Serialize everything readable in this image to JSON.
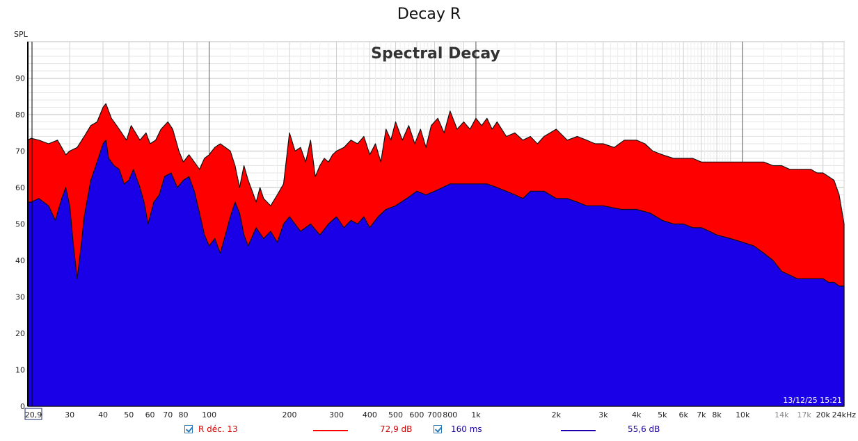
{
  "window": {
    "title": "Decay R"
  },
  "chart_data": {
    "type": "area",
    "title": "Spectral Decay",
    "ylabel": "SPL",
    "xlabel": "",
    "x_scale": "log",
    "xlim": [
      20.9,
      24000
    ],
    "ylim": [
      0,
      100
    ],
    "grid": true,
    "y_ticks": [
      "0",
      "10",
      "20",
      "30",
      "40",
      "50",
      "60",
      "70",
      "80",
      "90"
    ],
    "x_ticks": [
      {
        "value": 20.9,
        "label": "20,9"
      },
      {
        "value": 30,
        "label": "30"
      },
      {
        "value": 40,
        "label": "40"
      },
      {
        "value": 50,
        "label": "50"
      },
      {
        "value": 60,
        "label": "60"
      },
      {
        "value": 70,
        "label": "70"
      },
      {
        "value": 80,
        "label": "80"
      },
      {
        "value": 100,
        "label": "100"
      },
      {
        "value": 200,
        "label": "200"
      },
      {
        "value": 300,
        "label": "300"
      },
      {
        "value": 400,
        "label": "400"
      },
      {
        "value": 500,
        "label": "500"
      },
      {
        "value": 600,
        "label": "600"
      },
      {
        "value": 700,
        "label": "700"
      },
      {
        "value": 800,
        "label": "800"
      },
      {
        "value": 1000,
        "label": "1k"
      },
      {
        "value": 2000,
        "label": "2k"
      },
      {
        "value": 3000,
        "label": "3k"
      },
      {
        "value": 4000,
        "label": "4k"
      },
      {
        "value": 5000,
        "label": "5k"
      },
      {
        "value": 6000,
        "label": "6k"
      },
      {
        "value": 7000,
        "label": "7k"
      },
      {
        "value": 8000,
        "label": "8k"
      },
      {
        "value": 10000,
        "label": "10k"
      },
      {
        "value": 14000,
        "label": "14k",
        "light": true
      },
      {
        "value": 17000,
        "label": "17k",
        "light": true
      },
      {
        "value": 20000,
        "label": "20k"
      },
      {
        "value": 24000,
        "label": "24kHz"
      }
    ],
    "series": [
      {
        "name": "R déc. 13",
        "color": "#ff0000",
        "readout": "72,9 dB",
        "points": [
          [
            20.9,
            73
          ],
          [
            21.5,
            73.5
          ],
          [
            23,
            73
          ],
          [
            25,
            72
          ],
          [
            27,
            73
          ],
          [
            28,
            71
          ],
          [
            29,
            69
          ],
          [
            30,
            70
          ],
          [
            32,
            71
          ],
          [
            34,
            74
          ],
          [
            36,
            77
          ],
          [
            38,
            78
          ],
          [
            40,
            82
          ],
          [
            41,
            83
          ],
          [
            43,
            79
          ],
          [
            45,
            77
          ],
          [
            47,
            75
          ],
          [
            49,
            73
          ],
          [
            51,
            77
          ],
          [
            53,
            75
          ],
          [
            55,
            73
          ],
          [
            58,
            75
          ],
          [
            60,
            72
          ],
          [
            63,
            73
          ],
          [
            66,
            76
          ],
          [
            70,
            78
          ],
          [
            73,
            76
          ],
          [
            77,
            70
          ],
          [
            80,
            67
          ],
          [
            84,
            69
          ],
          [
            88,
            67
          ],
          [
            92,
            65
          ],
          [
            96,
            68
          ],
          [
            100,
            69
          ],
          [
            105,
            71
          ],
          [
            110,
            72
          ],
          [
            115,
            71
          ],
          [
            120,
            70
          ],
          [
            125,
            66
          ],
          [
            130,
            60
          ],
          [
            135,
            66
          ],
          [
            140,
            62
          ],
          [
            145,
            59
          ],
          [
            150,
            56
          ],
          [
            155,
            60
          ],
          [
            160,
            57
          ],
          [
            170,
            55
          ],
          [
            180,
            58
          ],
          [
            190,
            61
          ],
          [
            200,
            75
          ],
          [
            210,
            70
          ],
          [
            220,
            71
          ],
          [
            230,
            67
          ],
          [
            240,
            73
          ],
          [
            250,
            63
          ],
          [
            260,
            66
          ],
          [
            270,
            68
          ],
          [
            280,
            67
          ],
          [
            290,
            69
          ],
          [
            300,
            70
          ],
          [
            320,
            71
          ],
          [
            340,
            73
          ],
          [
            360,
            72
          ],
          [
            380,
            74
          ],
          [
            400,
            69
          ],
          [
            420,
            72
          ],
          [
            440,
            67
          ],
          [
            460,
            76
          ],
          [
            480,
            73
          ],
          [
            500,
            78
          ],
          [
            530,
            73
          ],
          [
            560,
            77
          ],
          [
            590,
            72
          ],
          [
            620,
            76
          ],
          [
            650,
            71
          ],
          [
            680,
            77
          ],
          [
            720,
            79
          ],
          [
            760,
            75
          ],
          [
            800,
            81
          ],
          [
            850,
            76
          ],
          [
            900,
            78
          ],
          [
            950,
            76
          ],
          [
            1000,
            79
          ],
          [
            1050,
            77
          ],
          [
            1100,
            79
          ],
          [
            1150,
            76
          ],
          [
            1200,
            78
          ],
          [
            1300,
            74
          ],
          [
            1400,
            75
          ],
          [
            1500,
            73
          ],
          [
            1600,
            74
          ],
          [
            1700,
            72
          ],
          [
            1800,
            74
          ],
          [
            2000,
            76
          ],
          [
            2200,
            73
          ],
          [
            2400,
            74
          ],
          [
            2600,
            73
          ],
          [
            2800,
            72
          ],
          [
            3000,
            72
          ],
          [
            3300,
            71
          ],
          [
            3600,
            73
          ],
          [
            4000,
            73
          ],
          [
            4300,
            72
          ],
          [
            4600,
            70
          ],
          [
            5000,
            69
          ],
          [
            5500,
            68
          ],
          [
            6000,
            68
          ],
          [
            6500,
            68
          ],
          [
            7000,
            67
          ],
          [
            7500,
            67
          ],
          [
            8000,
            67
          ],
          [
            9000,
            67
          ],
          [
            10000,
            67
          ],
          [
            11000,
            67
          ],
          [
            12000,
            67
          ],
          [
            13000,
            66
          ],
          [
            14000,
            66
          ],
          [
            15000,
            65
          ],
          [
            16000,
            65
          ],
          [
            17000,
            65
          ],
          [
            18000,
            65
          ],
          [
            19000,
            64
          ],
          [
            20000,
            64
          ],
          [
            21000,
            63
          ],
          [
            22000,
            62
          ],
          [
            23000,
            58
          ],
          [
            24000,
            50
          ]
        ]
      },
      {
        "name": "160 ms",
        "color": "#1a00e6",
        "readout": "55,6 dB",
        "points": [
          [
            20.9,
            56
          ],
          [
            21.5,
            56
          ],
          [
            23,
            57
          ],
          [
            25,
            55
          ],
          [
            26.5,
            51
          ],
          [
            28,
            57
          ],
          [
            29,
            60
          ],
          [
            30,
            55
          ],
          [
            31,
            44
          ],
          [
            32,
            35
          ],
          [
            33,
            43
          ],
          [
            34,
            52
          ],
          [
            36,
            62
          ],
          [
            38,
            67
          ],
          [
            40,
            72
          ],
          [
            41,
            73
          ],
          [
            42,
            68
          ],
          [
            44,
            66
          ],
          [
            46,
            65
          ],
          [
            48,
            61
          ],
          [
            50,
            62
          ],
          [
            52,
            65
          ],
          [
            55,
            60
          ],
          [
            57,
            56
          ],
          [
            59,
            50
          ],
          [
            62,
            56
          ],
          [
            65,
            58
          ],
          [
            68,
            63
          ],
          [
            72,
            64
          ],
          [
            76,
            60
          ],
          [
            80,
            62
          ],
          [
            84,
            63
          ],
          [
            88,
            59
          ],
          [
            92,
            53
          ],
          [
            96,
            47
          ],
          [
            100,
            44
          ],
          [
            105,
            46
          ],
          [
            110,
            42
          ],
          [
            115,
            47
          ],
          [
            120,
            52
          ],
          [
            125,
            56
          ],
          [
            130,
            53
          ],
          [
            135,
            47
          ],
          [
            140,
            44
          ],
          [
            150,
            49
          ],
          [
            160,
            46
          ],
          [
            170,
            48
          ],
          [
            180,
            45
          ],
          [
            190,
            50
          ],
          [
            200,
            52
          ],
          [
            220,
            48
          ],
          [
            240,
            50
          ],
          [
            260,
            47
          ],
          [
            280,
            50
          ],
          [
            300,
            52
          ],
          [
            320,
            49
          ],
          [
            340,
            51
          ],
          [
            360,
            50
          ],
          [
            380,
            52
          ],
          [
            400,
            49
          ],
          [
            430,
            52
          ],
          [
            460,
            54
          ],
          [
            500,
            55
          ],
          [
            550,
            57
          ],
          [
            600,
            59
          ],
          [
            650,
            58
          ],
          [
            700,
            59
          ],
          [
            750,
            60
          ],
          [
            800,
            61
          ],
          [
            900,
            61
          ],
          [
            1000,
            61
          ],
          [
            1100,
            61
          ],
          [
            1200,
            60
          ],
          [
            1300,
            59
          ],
          [
            1400,
            58
          ],
          [
            1500,
            57
          ],
          [
            1600,
            59
          ],
          [
            1800,
            59
          ],
          [
            2000,
            57
          ],
          [
            2200,
            57
          ],
          [
            2400,
            56
          ],
          [
            2600,
            55
          ],
          [
            2800,
            55
          ],
          [
            3000,
            55
          ],
          [
            3500,
            54
          ],
          [
            4000,
            54
          ],
          [
            4500,
            53
          ],
          [
            5000,
            51
          ],
          [
            5500,
            50
          ],
          [
            6000,
            50
          ],
          [
            6500,
            49
          ],
          [
            7000,
            49
          ],
          [
            7500,
            48
          ],
          [
            8000,
            47
          ],
          [
            9000,
            46
          ],
          [
            10000,
            45
          ],
          [
            11000,
            44
          ],
          [
            12000,
            42
          ],
          [
            13000,
            40
          ],
          [
            14000,
            37
          ],
          [
            15000,
            36
          ],
          [
            16000,
            35
          ],
          [
            17000,
            35
          ],
          [
            18000,
            35
          ],
          [
            19000,
            35
          ],
          [
            20000,
            35
          ],
          [
            21000,
            34
          ],
          [
            22000,
            34
          ],
          [
            23000,
            33
          ],
          [
            24000,
            33
          ]
        ]
      }
    ],
    "timestamp": "13/12/25 15:21"
  },
  "legend": {
    "item1_label": "R déc. 13",
    "item1_value": "72,9 dB",
    "item2_label": "160 ms",
    "item2_value": "55,6 dB"
  }
}
